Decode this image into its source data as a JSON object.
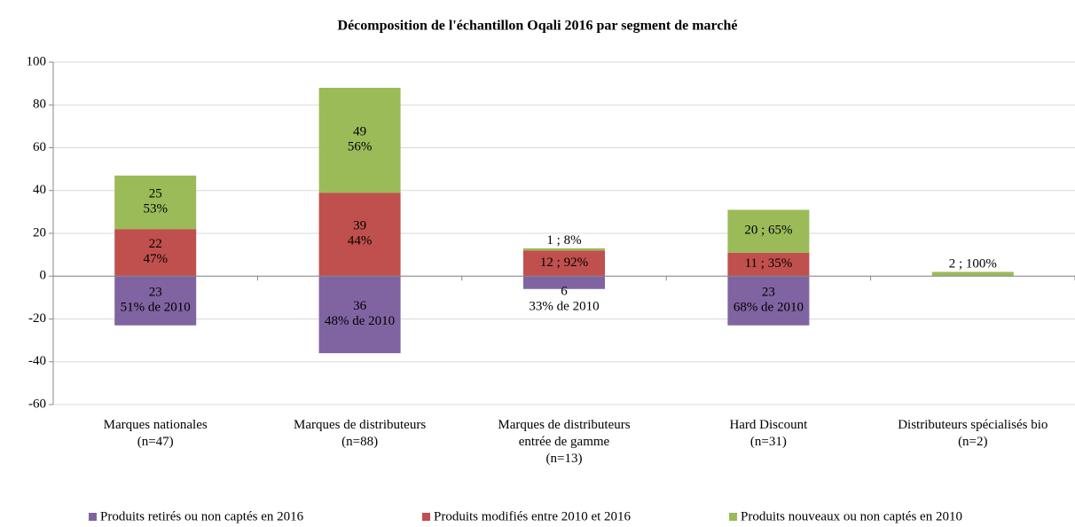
{
  "chart_data": {
    "type": "bar",
    "stacked": true,
    "title": "Décomposition de l'échantillon Oqali 2016 par segment de marché",
    "categories": [
      [
        "Marques nationales",
        "(n=47)"
      ],
      [
        "Marques de distributeurs",
        "(n=88)"
      ],
      [
        "Marques de distributeurs",
        "entrée de gamme",
        "(n=13)"
      ],
      [
        "Hard Discount",
        "(n=31)"
      ],
      [
        "Distributeurs spécialisés bio",
        "(n=2)"
      ]
    ],
    "series": [
      {
        "name": "Produits retirés ou non captés en 2016",
        "color": "#8064a2",
        "values": [
          -23,
          -36,
          -6,
          -23,
          null
        ],
        "value_labels": [
          [
            "23",
            "51% de 2010"
          ],
          [
            "36",
            "48% de 2010"
          ],
          [
            "6",
            "33% de 2010"
          ],
          [
            "23",
            "68% de 2010"
          ],
          null
        ]
      },
      {
        "name": "Produits modifiés entre 2010 et 2016",
        "color": "#c0504d",
        "values": [
          22,
          39,
          12,
          11,
          null
        ],
        "value_labels": [
          [
            "22",
            "47%"
          ],
          [
            "39",
            "44%"
          ],
          [
            "12 ; 92%"
          ],
          [
            "11 ; 35%"
          ],
          null
        ]
      },
      {
        "name": "Produits nouveaux ou non captés en 2010",
        "color": "#9bbb59",
        "values": [
          25,
          49,
          1,
          20,
          2
        ],
        "value_labels": [
          [
            "25",
            "53%"
          ],
          [
            "49",
            "56%"
          ],
          [
            "1 ; 8%"
          ],
          [
            "20 ; 65%"
          ],
          [
            "2 ; 100%"
          ]
        ]
      }
    ],
    "ylim": [
      -60,
      100
    ],
    "yticks": [
      -60,
      -40,
      -20,
      0,
      20,
      40,
      60,
      80,
      100
    ],
    "grid": true,
    "legend": "bottom"
  }
}
